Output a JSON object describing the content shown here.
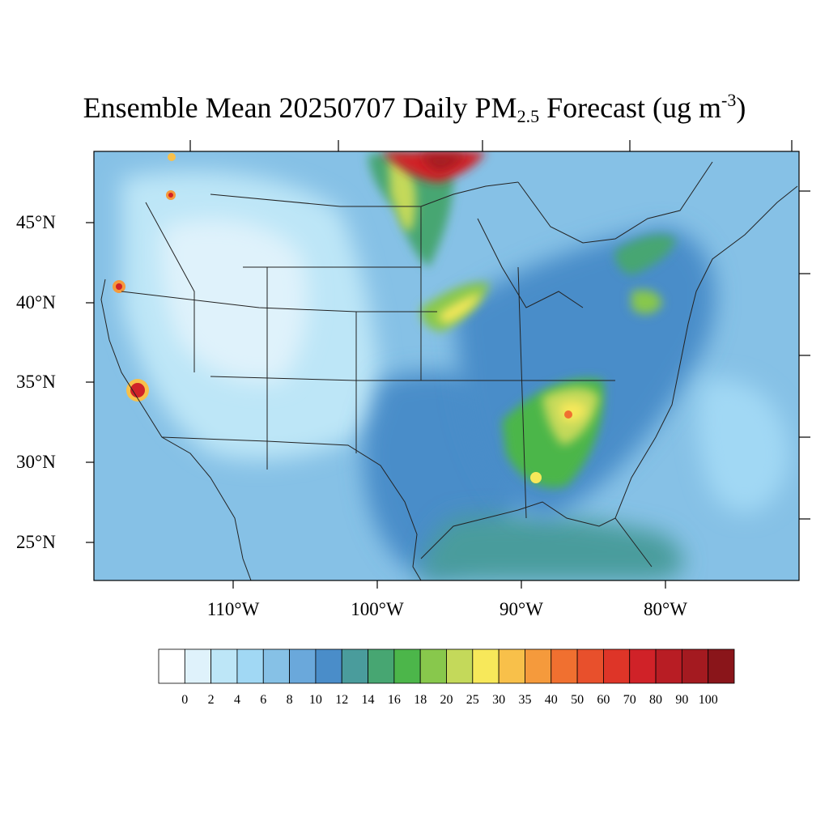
{
  "title": {
    "prefix": "Ensemble Mean 20250707 Daily PM",
    "subscript": "2.5",
    "mid": " Forecast (ug m",
    "superscript": "-3",
    "suffix": ")"
  },
  "latitude_labels": [
    "45°N",
    "40°N",
    "35°N",
    "30°N",
    "25°N"
  ],
  "longitude_labels": [
    "110°W",
    "100°W",
    "90°W",
    "80°W"
  ],
  "colorbar": {
    "labels": [
      "0",
      "2",
      "4",
      "6",
      "8",
      "10",
      "12",
      "14",
      "16",
      "18",
      "20",
      "25",
      "30",
      "35",
      "40",
      "50",
      "60",
      "70",
      "80",
      "90",
      "100"
    ],
    "colors": [
      "#ffffff",
      "#dff2fb",
      "#bde6f7",
      "#a1d8f4",
      "#86c1e6",
      "#6aa8db",
      "#4a8dc9",
      "#4a9c9c",
      "#47a672",
      "#4cb64a",
      "#88c84c",
      "#c4d95a",
      "#f7e85a",
      "#f8c04a",
      "#f59a3c",
      "#f07030",
      "#e8502c",
      "#de3528",
      "#d02228",
      "#b81d24",
      "#a41a20",
      "#8a151a"
    ]
  }
}
